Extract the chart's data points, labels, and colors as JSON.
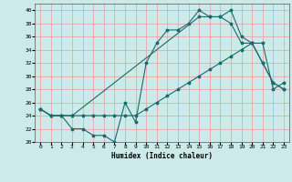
{
  "xlabel": "Humidex (Indice chaleur)",
  "bg_color": "#cceaea",
  "grid_color": "#ee9999",
  "line_color": "#1a6b6b",
  "xlim": [
    -0.5,
    23.5
  ],
  "ylim": [
    20,
    41
  ],
  "yticks": [
    20,
    22,
    24,
    26,
    28,
    30,
    32,
    34,
    36,
    38,
    40
  ],
  "xticks": [
    0,
    1,
    2,
    3,
    4,
    5,
    6,
    7,
    8,
    9,
    10,
    11,
    12,
    13,
    14,
    15,
    16,
    17,
    18,
    19,
    20,
    21,
    22,
    23
  ],
  "line1_x": [
    0,
    1,
    2,
    3,
    4,
    5,
    6,
    7,
    8,
    9,
    10,
    11,
    12,
    13,
    14,
    15,
    16,
    17,
    18,
    19,
    20,
    21,
    22,
    23
  ],
  "line1_y": [
    25,
    24,
    24,
    22,
    22,
    21,
    21,
    20,
    26,
    23,
    32,
    35,
    37,
    37,
    38,
    40,
    39,
    39,
    40,
    36,
    35,
    32,
    29,
    28
  ],
  "line2_x": [
    0,
    1,
    2,
    3,
    4,
    5,
    6,
    7,
    8,
    9,
    10,
    11,
    12,
    13,
    14,
    15,
    16,
    17,
    18,
    19,
    20,
    21,
    22,
    23
  ],
  "line2_y": [
    25,
    24,
    24,
    24,
    24,
    24,
    24,
    24,
    24,
    24,
    25,
    26,
    27,
    28,
    29,
    30,
    31,
    32,
    33,
    34,
    35,
    35,
    28,
    29
  ],
  "line3_x": [
    0,
    1,
    2,
    3,
    15,
    16,
    17,
    18,
    19,
    20,
    21,
    22,
    23
  ],
  "line3_y": [
    25,
    24,
    24,
    24,
    39,
    39,
    39,
    38,
    35,
    35,
    32,
    29,
    28
  ]
}
